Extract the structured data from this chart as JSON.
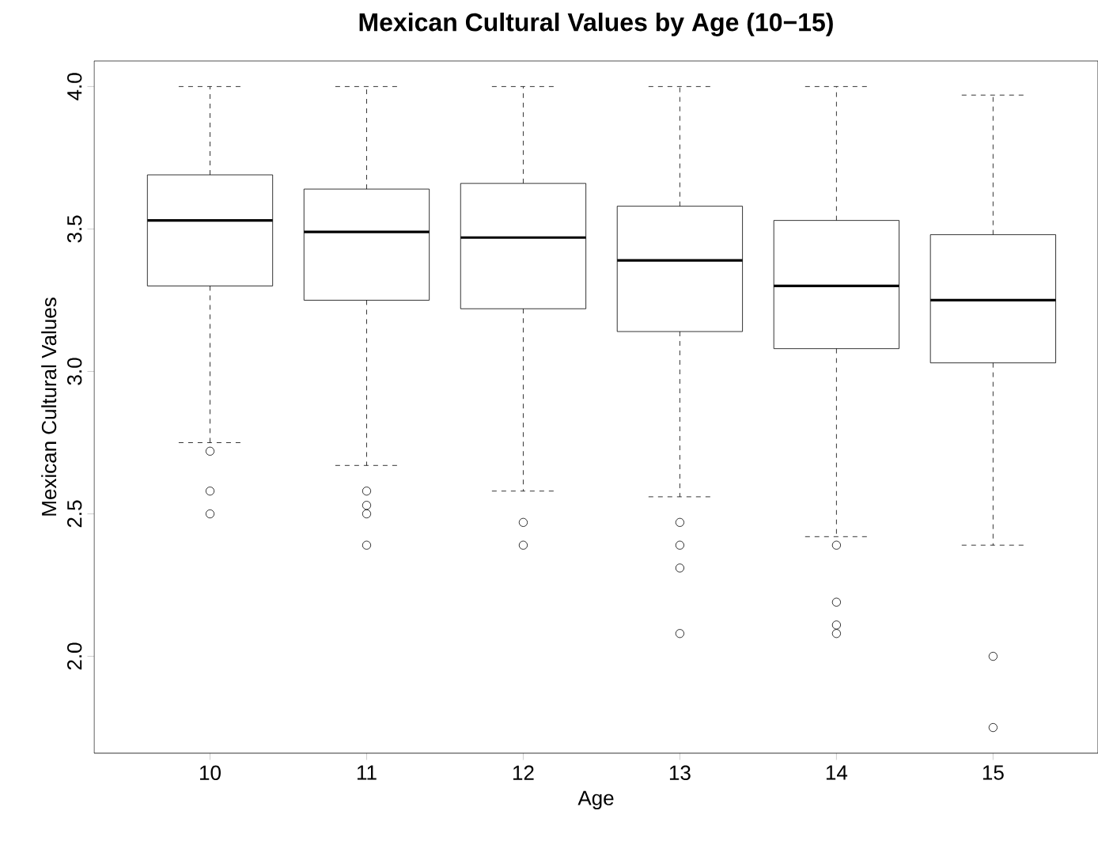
{
  "chart_data": {
    "type": "box",
    "title": "Mexican Cultural Values by Age (10−15)",
    "xlabel": "Age",
    "ylabel": "Mexican Cultural Values",
    "categories": [
      "10",
      "11",
      "12",
      "13",
      "14",
      "15"
    ],
    "boxes": [
      {
        "low": 2.75,
        "q1": 3.3,
        "median": 3.53,
        "q3": 3.69,
        "high": 4.0,
        "outliers": [
          2.72,
          2.58,
          2.5
        ]
      },
      {
        "low": 2.67,
        "q1": 3.25,
        "median": 3.49,
        "q3": 3.64,
        "high": 4.0,
        "outliers": [
          2.58,
          2.53,
          2.5,
          2.39
        ]
      },
      {
        "low": 2.58,
        "q1": 3.22,
        "median": 3.47,
        "q3": 3.66,
        "high": 4.0,
        "outliers": [
          2.47,
          2.39
        ]
      },
      {
        "low": 2.56,
        "q1": 3.14,
        "median": 3.39,
        "q3": 3.58,
        "high": 4.0,
        "outliers": [
          2.47,
          2.39,
          2.31,
          2.08
        ]
      },
      {
        "low": 2.42,
        "q1": 3.08,
        "median": 3.3,
        "q3": 3.53,
        "high": 4.0,
        "outliers": [
          2.39,
          2.19,
          2.11,
          2.08
        ]
      },
      {
        "low": 2.39,
        "q1": 3.03,
        "median": 3.25,
        "q3": 3.48,
        "high": 3.97,
        "outliers": [
          2.0,
          1.75
        ]
      }
    ],
    "ylim": [
      1.66,
      4.09
    ],
    "yticks": [
      {
        "value": 2,
        "label": "2.0"
      },
      {
        "value": 2.5,
        "label": "2.5"
      },
      {
        "value": 3,
        "label": "3.0"
      },
      {
        "value": 3.5,
        "label": "3.5"
      },
      {
        "value": 4,
        "label": "4.0"
      }
    ]
  }
}
